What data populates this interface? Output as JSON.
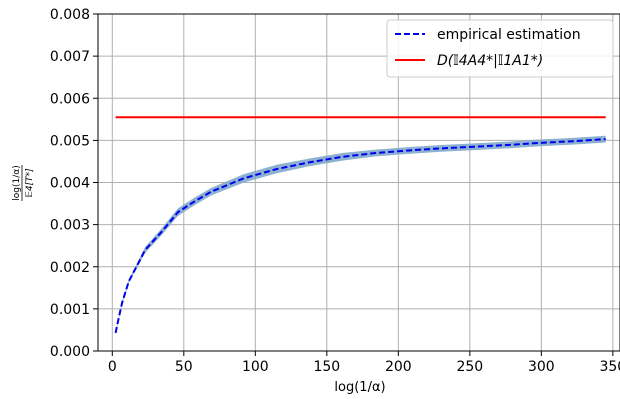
{
  "chart_data": {
    "type": "line",
    "title": "",
    "xlabel": "log(1/α)",
    "ylabel": {
      "numerator": "log(1/α)",
      "denominator": "𝔼4[T*]"
    },
    "xlim": [
      -10,
      355
    ],
    "ylim": [
      0,
      0.008
    ],
    "x_ticks": [
      {
        "value": 0,
        "label": "0"
      },
      {
        "value": 50,
        "label": "50"
      },
      {
        "value": 100,
        "label": "100"
      },
      {
        "value": 150,
        "label": "150"
      },
      {
        "value": 200,
        "label": "200"
      },
      {
        "value": 250,
        "label": "250"
      },
      {
        "value": 300,
        "label": "300"
      },
      {
        "value": 350,
        "label": "350"
      }
    ],
    "y_ticks": [
      {
        "value": 0,
        "label": "0.000"
      },
      {
        "value": 0.001,
        "label": "0.001"
      },
      {
        "value": 0.002,
        "label": "0.002"
      },
      {
        "value": 0.003,
        "label": "0.003"
      },
      {
        "value": 0.004,
        "label": "0.004"
      },
      {
        "value": 0.005,
        "label": "0.005"
      },
      {
        "value": 0.006,
        "label": "0.006"
      },
      {
        "value": 0.007,
        "label": "0.007"
      },
      {
        "value": 0.008,
        "label": "0.008"
      }
    ],
    "grid": true,
    "legend_position": "top-right",
    "series": [
      {
        "name": "empirical estimation",
        "style": "dashed",
        "color": "#0000ee",
        "band_color": "#7fa8cc",
        "x": [
          2.3,
          4.6,
          6.9,
          11.5,
          23,
          34.5,
          46,
          57.5,
          69,
          92,
          115,
          138,
          161,
          184,
          207,
          230,
          253,
          276,
          299,
          322,
          345
        ],
        "y": [
          0.00043,
          0.0008,
          0.00115,
          0.00165,
          0.0024,
          0.00283,
          0.0033,
          0.00355,
          0.00378,
          0.0041,
          0.00432,
          0.00448,
          0.00461,
          0.0047,
          0.00476,
          0.00481,
          0.00485,
          0.00489,
          0.00494,
          0.00498,
          0.00503
        ],
        "band_halfwidth": [
          3e-05,
          3e-05,
          4e-05,
          4e-05,
          7e-05,
          8e-05,
          9e-05,
          9e-05,
          9e-05,
          0.0001,
          0.0001,
          9e-05,
          9e-05,
          8e-05,
          8e-05,
          8e-05,
          8e-05,
          8e-05,
          8e-05,
          8e-05,
          8e-05
        ]
      },
      {
        "name": "D(𝕀4A4*|𝕀1A1*)",
        "style": "solid",
        "color": "#ff0000",
        "x": [
          2.3,
          345
        ],
        "y": [
          0.00555,
          0.00555
        ]
      }
    ]
  }
}
